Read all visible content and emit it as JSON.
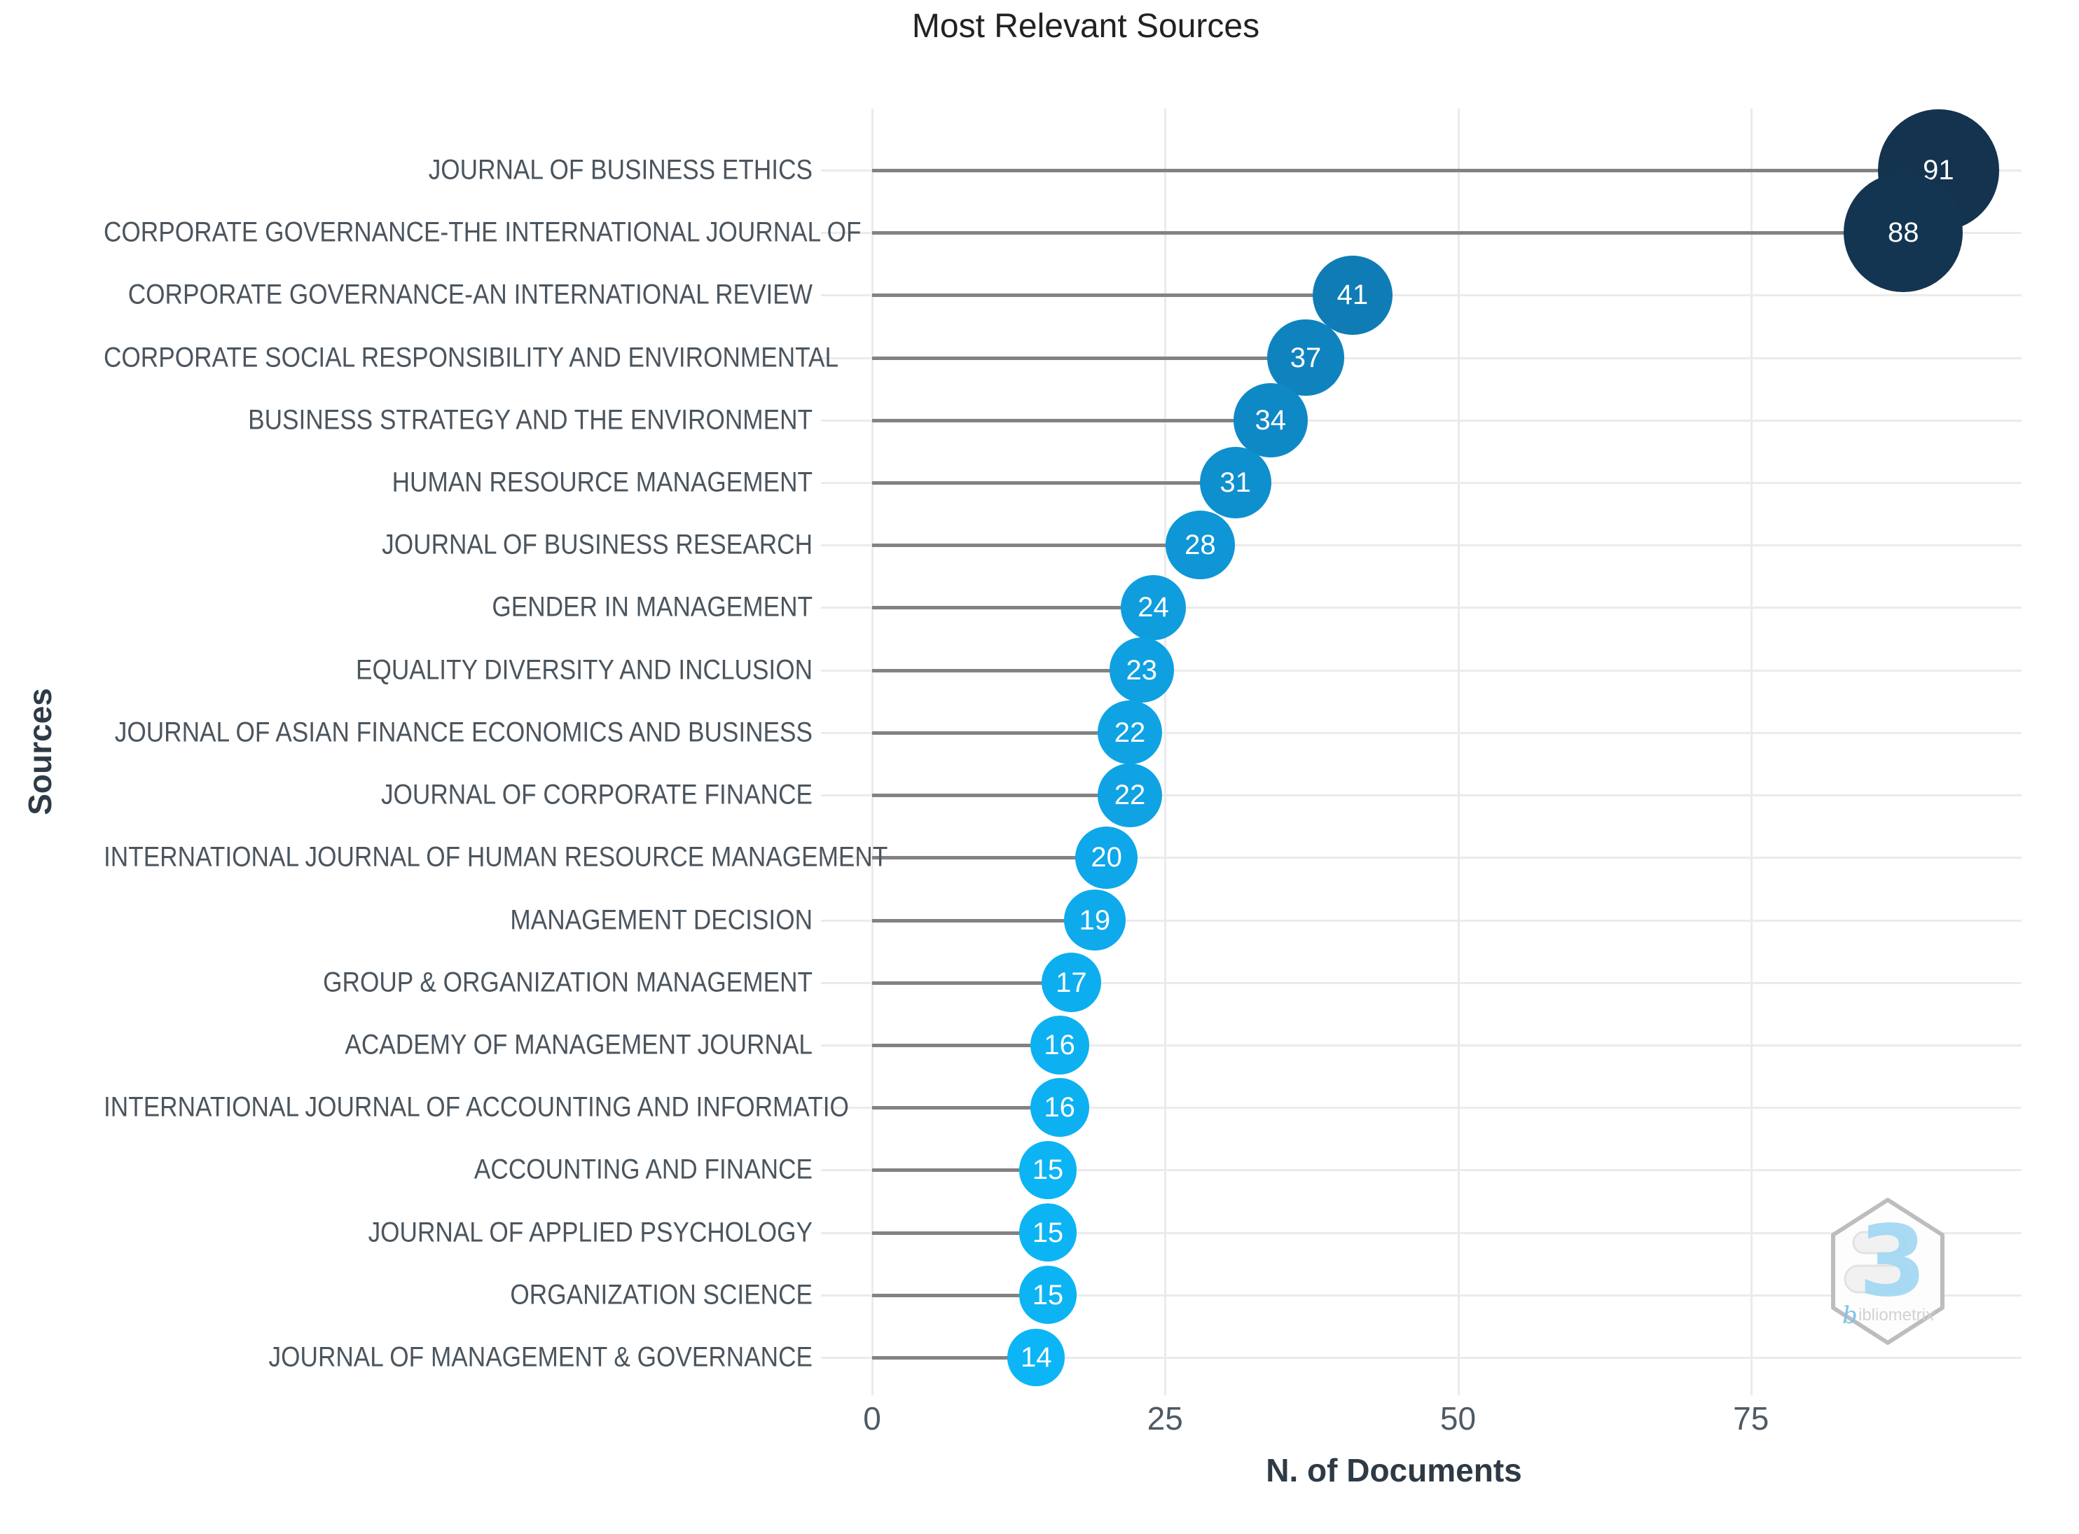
{
  "title": "Most Relevant Sources",
  "axes": {
    "x_title": "N. of Documents",
    "y_title": "Sources",
    "x_tick_labels": [
      "0",
      "25",
      "50",
      "75"
    ]
  },
  "watermark": {
    "glyph": "3",
    "brand": "bibliometrix"
  },
  "palette": {
    "stem": "#828282",
    "grid": "#ebebeb",
    "title_text": "#222222",
    "axis_title_text": "#2e3a45",
    "tick_text": "#4e5a64",
    "category_text": "#4b555e",
    "value_text": "#ffffff",
    "point_max": "#14334e",
    "point_min": "#0cb6f6"
  },
  "chart_data": {
    "type": "scatter",
    "variant": "horizontal-lollipop",
    "title": "Most Relevant Sources",
    "xlabel": "N. of Documents",
    "ylabel": "Sources",
    "xlim": [
      0,
      98
    ],
    "xticks": [
      0,
      25,
      50,
      75
    ],
    "grid": true,
    "legend": false,
    "categories": [
      "JOURNAL OF BUSINESS ETHICS",
      "CORPORATE GOVERNANCE-THE INTERNATIONAL JOURNAL OF",
      "CORPORATE GOVERNANCE-AN INTERNATIONAL REVIEW",
      "CORPORATE SOCIAL RESPONSIBILITY AND ENVIRONMENTAL",
      "BUSINESS STRATEGY AND THE ENVIRONMENT",
      "HUMAN RESOURCE MANAGEMENT",
      "JOURNAL OF BUSINESS RESEARCH",
      "GENDER IN MANAGEMENT",
      "EQUALITY DIVERSITY AND INCLUSION",
      "JOURNAL OF ASIAN FINANCE ECONOMICS AND BUSINESS",
      "JOURNAL OF CORPORATE FINANCE",
      "INTERNATIONAL JOURNAL OF HUMAN RESOURCE MANAGEMENT",
      "MANAGEMENT DECISION",
      "GROUP & ORGANIZATION MANAGEMENT",
      "ACADEMY OF MANAGEMENT JOURNAL",
      "INTERNATIONAL JOURNAL OF ACCOUNTING AND INFORMATIO",
      "ACCOUNTING AND FINANCE",
      "JOURNAL OF APPLIED PSYCHOLOGY",
      "ORGANIZATION SCIENCE",
      "JOURNAL OF MANAGEMENT & GOVERNANCE"
    ],
    "values": [
      91,
      88,
      41,
      37,
      34,
      31,
      28,
      24,
      23,
      22,
      22,
      20,
      19,
      17,
      16,
      16,
      15,
      15,
      15,
      14
    ],
    "point_colors": [
      "#14334e",
      "#143551",
      "#107cb5",
      "#0f83be",
      "#0f89c6",
      "#0e8fce",
      "#0e96d6",
      "#0f9dde",
      "#0fa0e1",
      "#0fa3e4",
      "#0fa3e4",
      "#0ea7e9",
      "#0eaaeb",
      "#0daeef",
      "#0db1f1",
      "#0db1f1",
      "#0cb4f4",
      "#0cb4f4",
      "#0cb4f4",
      "#0cb6f6"
    ]
  }
}
